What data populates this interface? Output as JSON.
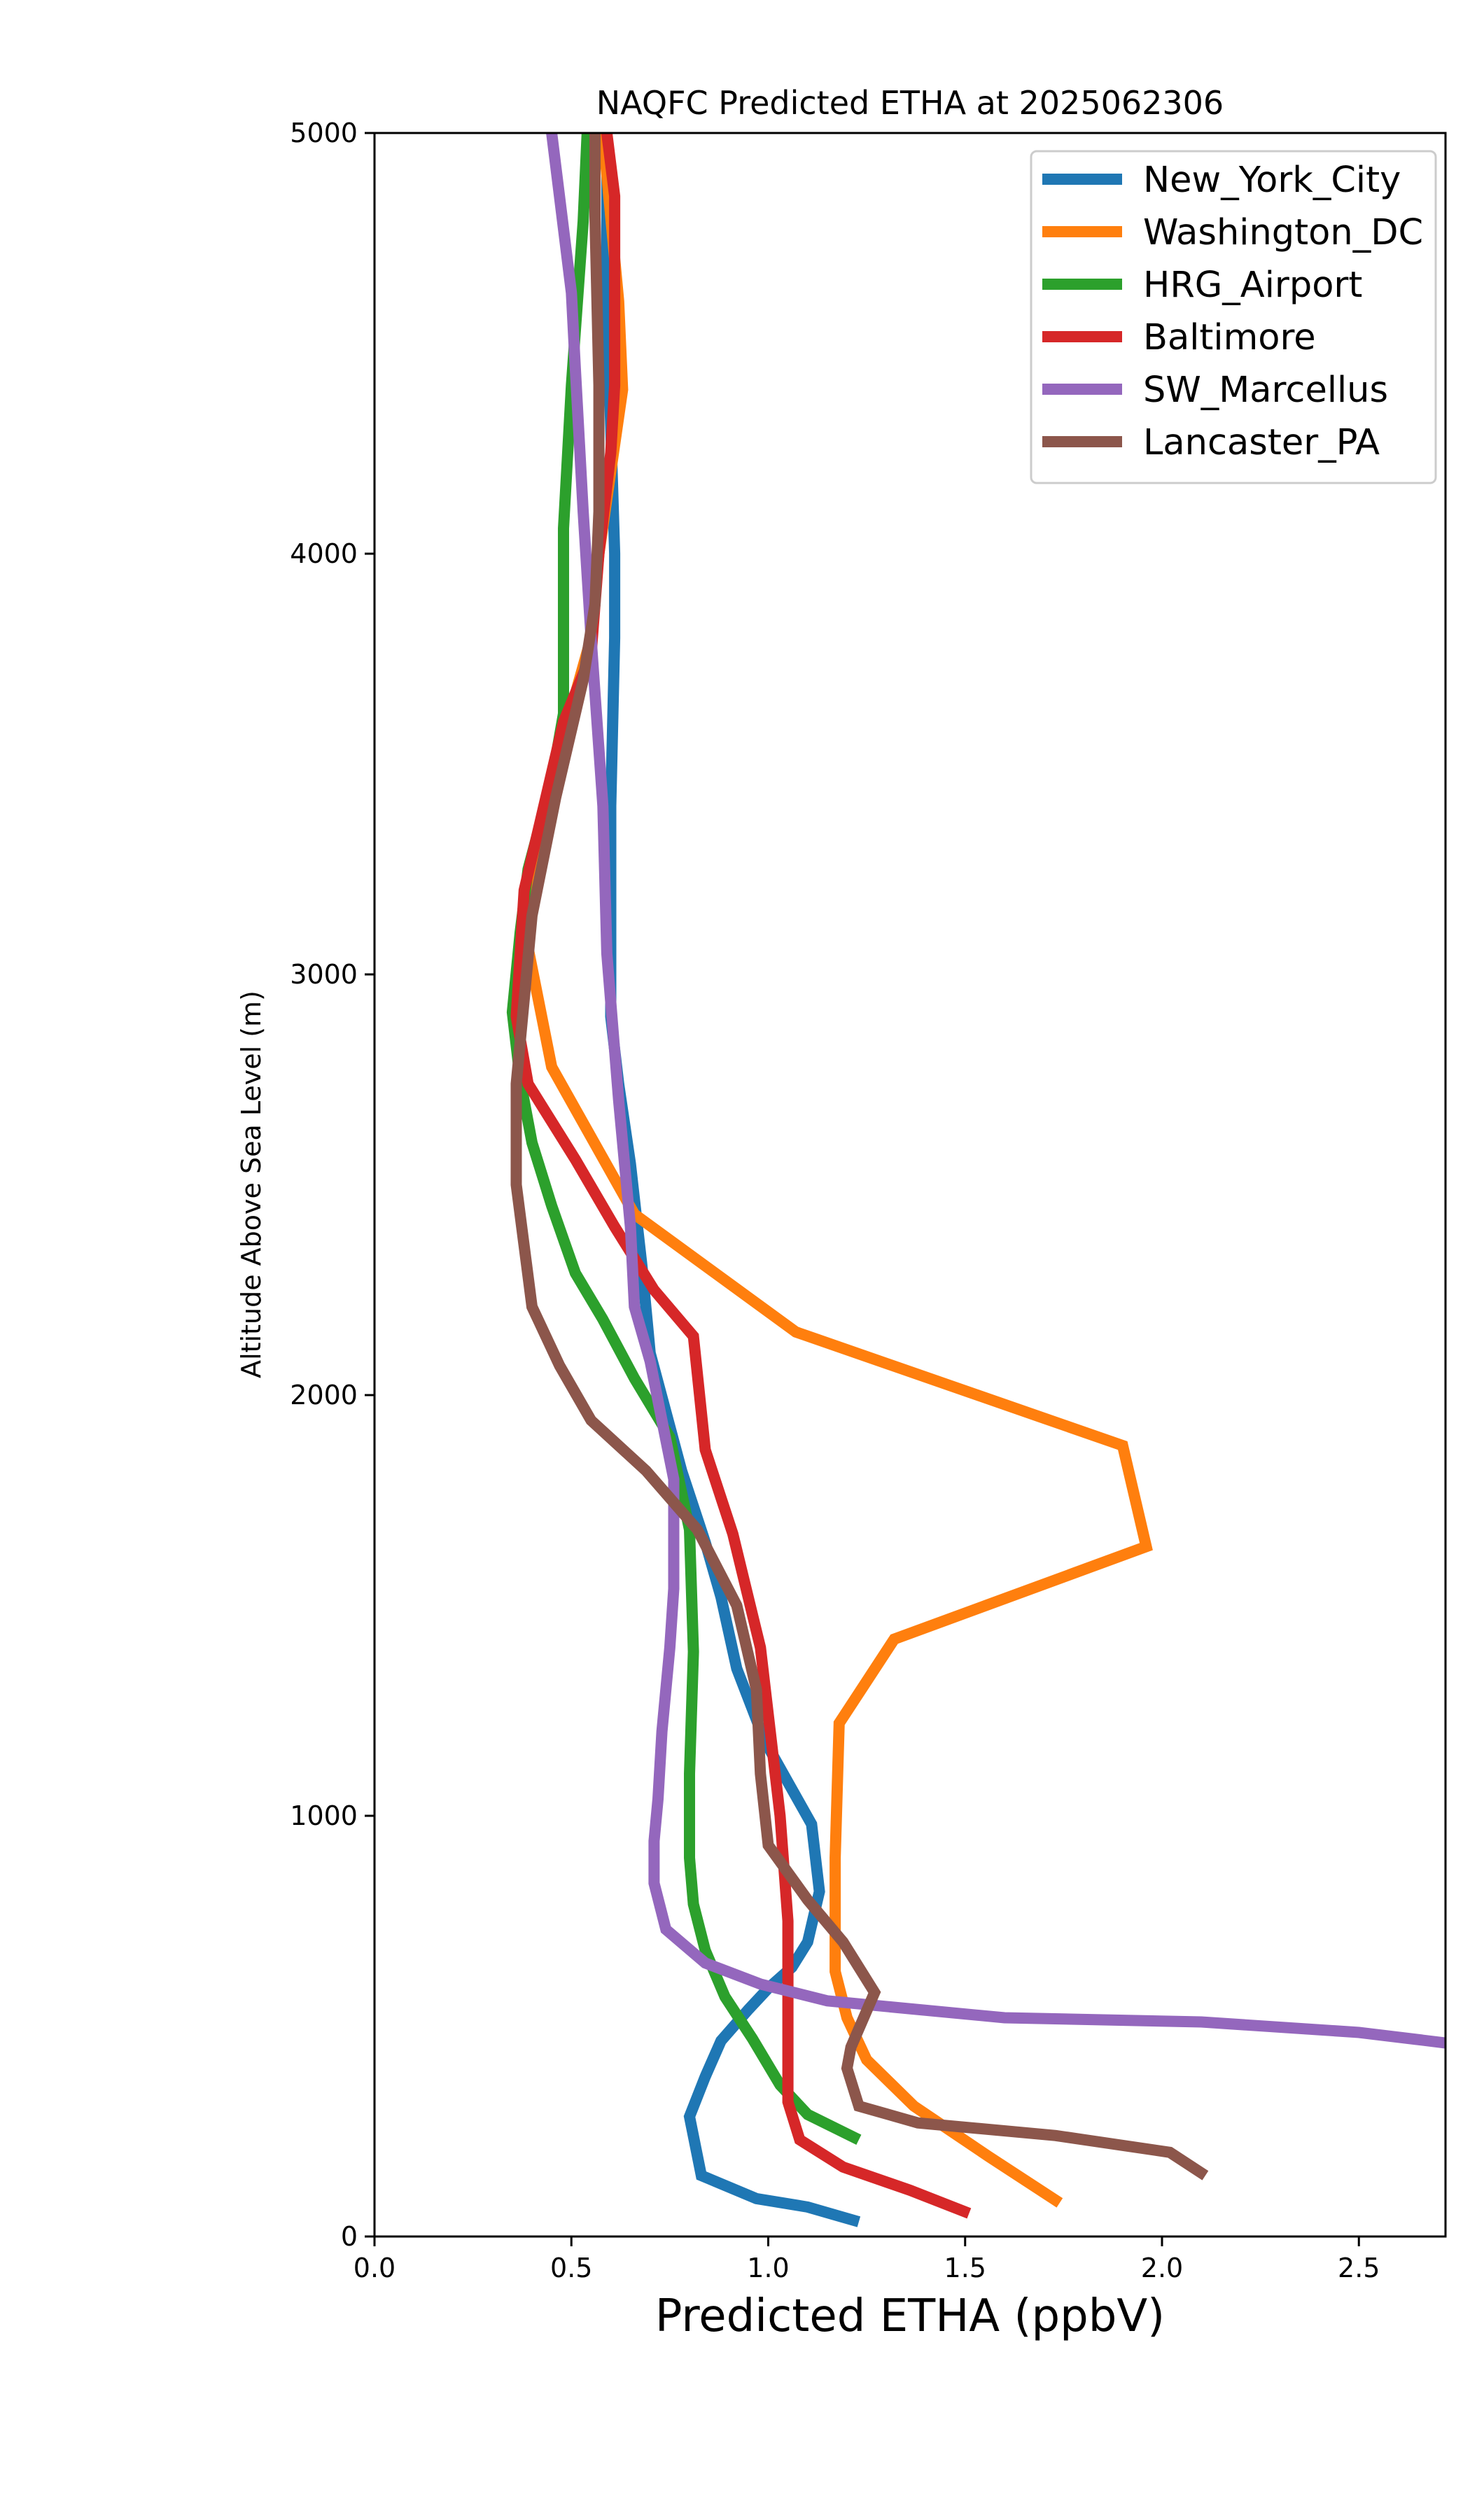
{
  "chart_data": {
    "type": "line",
    "title": "NAQFC Predicted ETHA at 2025062306",
    "xlabel": "Predicted ETHA (ppbV)",
    "ylabel": "Altitude Above Sea Level (m)",
    "xlim": [
      0,
      2.72
    ],
    "ylim": [
      0,
      5000
    ],
    "xticks": [
      0.0,
      0.5,
      1.0,
      1.5,
      2.0,
      2.5
    ],
    "xtick_labels": [
      "0.0",
      "0.5",
      "1.0",
      "1.5",
      "2.0",
      "2.5"
    ],
    "yticks": [
      0,
      1000,
      2000,
      3000,
      4000,
      5000
    ],
    "ytick_labels": [
      "0",
      "1000",
      "2000",
      "3000",
      "4000",
      "5000"
    ],
    "grid": false,
    "legend_position": "top-right",
    "series": [
      {
        "name": "New_York_City",
        "color": "#1f77b4",
        "points": [
          [
            1.23,
            35
          ],
          [
            1.1,
            70
          ],
          [
            0.97,
            90
          ],
          [
            0.83,
            145
          ],
          [
            0.8,
            285
          ],
          [
            0.84,
            380
          ],
          [
            0.88,
            465
          ],
          [
            0.95,
            540
          ],
          [
            1.0,
            590
          ],
          [
            1.06,
            640
          ],
          [
            1.1,
            700
          ],
          [
            1.13,
            820
          ],
          [
            1.11,
            980
          ],
          [
            1.05,
            1080
          ],
          [
            0.99,
            1180
          ],
          [
            0.92,
            1350
          ],
          [
            0.88,
            1520
          ],
          [
            0.84,
            1650
          ],
          [
            0.78,
            1820
          ],
          [
            0.7,
            2100
          ],
          [
            0.68,
            2300
          ],
          [
            0.65,
            2550
          ],
          [
            0.62,
            2740
          ],
          [
            0.6,
            2900
          ],
          [
            0.6,
            3080
          ],
          [
            0.6,
            3400
          ],
          [
            0.61,
            3800
          ],
          [
            0.61,
            4000
          ],
          [
            0.59,
            4600
          ],
          [
            0.59,
            5000
          ]
        ]
      },
      {
        "name": "Washington_DC",
        "color": "#ff7f0e",
        "points": [
          [
            1.74,
            80
          ],
          [
            1.56,
            190
          ],
          [
            1.37,
            310
          ],
          [
            1.25,
            420
          ],
          [
            1.2,
            520
          ],
          [
            1.17,
            630
          ],
          [
            1.17,
            900
          ],
          [
            1.18,
            1220
          ],
          [
            1.32,
            1420
          ],
          [
            1.96,
            1640
          ],
          [
            1.9,
            1880
          ],
          [
            1.07,
            2150
          ],
          [
            0.66,
            2430
          ],
          [
            0.45,
            2780
          ],
          [
            0.38,
            3110
          ],
          [
            0.46,
            3500
          ],
          [
            0.55,
            3800
          ],
          [
            0.57,
            4000
          ],
          [
            0.63,
            4390
          ],
          [
            0.62,
            4600
          ],
          [
            0.58,
            5000
          ]
        ]
      },
      {
        "name": "HRG_Airport",
        "color": "#2ca02c",
        "points": [
          [
            1.23,
            230
          ],
          [
            1.1,
            290
          ],
          [
            1.03,
            360
          ],
          [
            0.96,
            470
          ],
          [
            0.89,
            570
          ],
          [
            0.84,
            680
          ],
          [
            0.81,
            790
          ],
          [
            0.8,
            900
          ],
          [
            0.8,
            1100
          ],
          [
            0.81,
            1390
          ],
          [
            0.8,
            1680
          ],
          [
            0.75,
            1900
          ],
          [
            0.66,
            2040
          ],
          [
            0.58,
            2180
          ],
          [
            0.51,
            2290
          ],
          [
            0.45,
            2450
          ],
          [
            0.4,
            2600
          ],
          [
            0.37,
            2750
          ],
          [
            0.35,
            2910
          ],
          [
            0.37,
            3100
          ],
          [
            0.39,
            3250
          ],
          [
            0.45,
            3460
          ],
          [
            0.48,
            3620
          ],
          [
            0.48,
            4060
          ],
          [
            0.5,
            4400
          ],
          [
            0.53,
            4790
          ],
          [
            0.54,
            5000
          ]
        ]
      },
      {
        "name": "Baltimore",
        "color": "#d62728",
        "points": [
          [
            1.51,
            55
          ],
          [
            1.36,
            110
          ],
          [
            1.19,
            165
          ],
          [
            1.08,
            230
          ],
          [
            1.05,
            320
          ],
          [
            1.05,
            500
          ],
          [
            1.05,
            750
          ],
          [
            1.03,
            1000
          ],
          [
            0.98,
            1400
          ],
          [
            0.91,
            1670
          ],
          [
            0.84,
            1870
          ],
          [
            0.81,
            2140
          ],
          [
            0.71,
            2250
          ],
          [
            0.61,
            2400
          ],
          [
            0.51,
            2560
          ],
          [
            0.39,
            2740
          ],
          [
            0.36,
            2900
          ],
          [
            0.38,
            3200
          ],
          [
            0.43,
            3400
          ],
          [
            0.48,
            3600
          ],
          [
            0.55,
            3760
          ],
          [
            0.57,
            4000
          ],
          [
            0.6,
            4240
          ],
          [
            0.61,
            4400
          ],
          [
            0.61,
            4600
          ],
          [
            0.61,
            4850
          ],
          [
            0.59,
            5000
          ]
        ]
      },
      {
        "name": "SW_Marcellus",
        "color": "#9467bd",
        "points": [
          [
            2.72,
            460
          ],
          [
            2.5,
            485
          ],
          [
            2.1,
            510
          ],
          [
            1.6,
            520
          ],
          [
            1.15,
            560
          ],
          [
            0.98,
            600
          ],
          [
            0.84,
            650
          ],
          [
            0.74,
            730
          ],
          [
            0.71,
            840
          ],
          [
            0.71,
            940
          ],
          [
            0.72,
            1040
          ],
          [
            0.73,
            1200
          ],
          [
            0.75,
            1400
          ],
          [
            0.76,
            1540
          ],
          [
            0.76,
            1800
          ],
          [
            0.73,
            1940
          ],
          [
            0.7,
            2080
          ],
          [
            0.66,
            2210
          ],
          [
            0.65,
            2400
          ],
          [
            0.62,
            2700
          ],
          [
            0.59,
            3050
          ],
          [
            0.58,
            3400
          ],
          [
            0.55,
            3800
          ],
          [
            0.53,
            4100
          ],
          [
            0.51,
            4440
          ],
          [
            0.5,
            4620
          ],
          [
            0.45,
            5000
          ]
        ]
      },
      {
        "name": "Lancaster_PA",
        "color": "#8c564b",
        "points": [
          [
            2.11,
            145
          ],
          [
            2.02,
            200
          ],
          [
            1.73,
            240
          ],
          [
            1.38,
            270
          ],
          [
            1.23,
            310
          ],
          [
            1.2,
            400
          ],
          [
            1.21,
            450
          ],
          [
            1.27,
            580
          ],
          [
            1.19,
            700
          ],
          [
            1.1,
            800
          ],
          [
            1.0,
            930
          ],
          [
            0.98,
            1100
          ],
          [
            0.97,
            1300
          ],
          [
            0.92,
            1500
          ],
          [
            0.82,
            1680
          ],
          [
            0.69,
            1820
          ],
          [
            0.55,
            1940
          ],
          [
            0.47,
            2070
          ],
          [
            0.4,
            2210
          ],
          [
            0.36,
            2500
          ],
          [
            0.36,
            2740
          ],
          [
            0.38,
            2940
          ],
          [
            0.4,
            3140
          ],
          [
            0.46,
            3420
          ],
          [
            0.53,
            3700
          ],
          [
            0.56,
            3880
          ],
          [
            0.57,
            4100
          ],
          [
            0.57,
            4400
          ],
          [
            0.56,
            4800
          ],
          [
            0.56,
            5000
          ]
        ]
      }
    ]
  }
}
